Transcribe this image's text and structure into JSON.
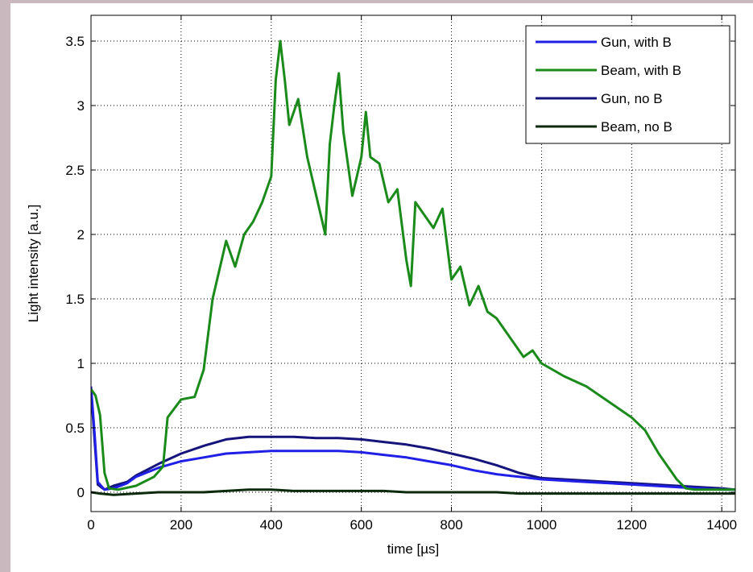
{
  "chart_data": {
    "type": "line",
    "title": "",
    "xlabel": "time [µs]",
    "ylabel": "Light intensity [a.u.]",
    "xlim": [
      0,
      1430
    ],
    "ylim": [
      -0.15,
      3.7
    ],
    "xticks": [
      0,
      200,
      400,
      600,
      800,
      1000,
      1200,
      1400
    ],
    "yticks": [
      0,
      0.5,
      1,
      1.5,
      2,
      2.5,
      3,
      3.5
    ],
    "xtick_labels": [
      "0",
      "200",
      "400",
      "600",
      "800",
      "1000",
      "1200",
      "1400"
    ],
    "ytick_labels": [
      "0",
      "0.5",
      "1",
      "1.5",
      "2",
      "2.5",
      "3",
      "3.5"
    ],
    "grid": true,
    "legend_position": "top-right",
    "series": [
      {
        "name": "Gun, with B",
        "color": "#1f1fe6",
        "x": [
          0,
          8,
          15,
          30,
          50,
          80,
          100,
          150,
          200,
          250,
          300,
          350,
          400,
          450,
          500,
          550,
          600,
          650,
          700,
          750,
          800,
          850,
          900,
          950,
          1000,
          1050,
          1100,
          1150,
          1200,
          1250,
          1300,
          1350,
          1400,
          1430
        ],
        "y": [
          0.82,
          0.45,
          0.08,
          0.02,
          0.03,
          0.07,
          0.12,
          0.19,
          0.24,
          0.27,
          0.3,
          0.31,
          0.32,
          0.32,
          0.32,
          0.32,
          0.31,
          0.29,
          0.27,
          0.24,
          0.21,
          0.17,
          0.14,
          0.12,
          0.1,
          0.09,
          0.08,
          0.07,
          0.06,
          0.05,
          0.04,
          0.03,
          0.02,
          0.02
        ]
      },
      {
        "name": "Beam, with B",
        "color": "#1a8a1a",
        "x": [
          0,
          10,
          20,
          30,
          40,
          60,
          100,
          140,
          160,
          170,
          200,
          230,
          250,
          270,
          290,
          300,
          320,
          340,
          360,
          380,
          400,
          410,
          420,
          430,
          440,
          460,
          480,
          500,
          520,
          530,
          540,
          550,
          560,
          580,
          600,
          610,
          620,
          640,
          660,
          680,
          700,
          710,
          720,
          740,
          760,
          780,
          800,
          820,
          840,
          860,
          880,
          900,
          920,
          940,
          960,
          980,
          1000,
          1050,
          1100,
          1150,
          1200,
          1230,
          1260,
          1300,
          1320,
          1340,
          1360,
          1400,
          1430
        ],
        "y": [
          0.8,
          0.75,
          0.6,
          0.15,
          0.03,
          0.02,
          0.05,
          0.12,
          0.2,
          0.58,
          0.72,
          0.74,
          0.95,
          1.5,
          1.8,
          1.95,
          1.75,
          2.0,
          2.1,
          2.25,
          2.45,
          3.2,
          3.5,
          3.2,
          2.85,
          3.05,
          2.6,
          2.3,
          2.0,
          2.7,
          3.0,
          3.25,
          2.8,
          2.3,
          2.6,
          2.95,
          2.6,
          2.55,
          2.25,
          2.35,
          1.8,
          1.6,
          2.25,
          2.15,
          2.05,
          2.2,
          1.65,
          1.75,
          1.45,
          1.6,
          1.4,
          1.35,
          1.25,
          1.15,
          1.05,
          1.1,
          1.0,
          0.9,
          0.82,
          0.7,
          0.58,
          0.48,
          0.3,
          0.1,
          0.03,
          0.02,
          0.02,
          0.02,
          0.02
        ]
      },
      {
        "name": "Gun, no B",
        "color": "#14147a",
        "x": [
          0,
          8,
          15,
          30,
          50,
          80,
          100,
          150,
          200,
          250,
          300,
          350,
          400,
          450,
          500,
          550,
          600,
          650,
          700,
          750,
          800,
          850,
          900,
          950,
          1000,
          1050,
          1100,
          1150,
          1200,
          1250,
          1300,
          1350,
          1400,
          1430
        ],
        "y": [
          0.8,
          0.4,
          0.06,
          0.02,
          0.05,
          0.08,
          0.13,
          0.22,
          0.3,
          0.36,
          0.41,
          0.43,
          0.43,
          0.43,
          0.42,
          0.42,
          0.41,
          0.39,
          0.37,
          0.34,
          0.3,
          0.26,
          0.21,
          0.15,
          0.11,
          0.1,
          0.09,
          0.08,
          0.07,
          0.06,
          0.05,
          0.04,
          0.03,
          0.02
        ]
      },
      {
        "name": "Beam, no B",
        "color": "#0b2a0b",
        "x": [
          0,
          20,
          50,
          100,
          150,
          200,
          250,
          300,
          350,
          400,
          450,
          500,
          550,
          600,
          650,
          700,
          750,
          800,
          850,
          900,
          950,
          1000,
          1050,
          1100,
          1150,
          1200,
          1250,
          1300,
          1350,
          1400,
          1430
        ],
        "y": [
          0.0,
          -0.01,
          -0.02,
          -0.01,
          0.0,
          0.0,
          0.0,
          0.01,
          0.02,
          0.02,
          0.01,
          0.01,
          0.01,
          0.01,
          0.01,
          0.0,
          0.0,
          0.0,
          0.0,
          0.0,
          -0.01,
          -0.01,
          -0.01,
          -0.01,
          -0.01,
          -0.01,
          -0.01,
          -0.01,
          -0.01,
          -0.01,
          -0.01
        ]
      }
    ]
  }
}
